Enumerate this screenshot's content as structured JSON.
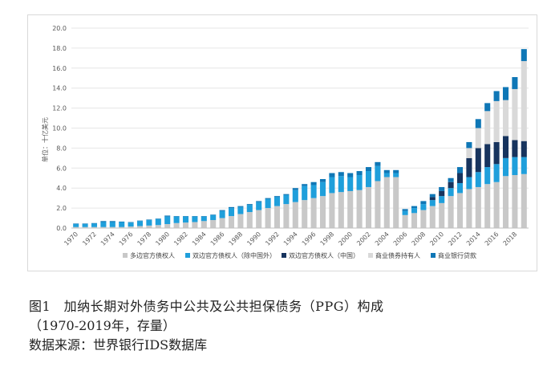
{
  "figure": {
    "caption_title": "图1　加纳长期对外债务中公共及公共担保债务（PPG）构成",
    "caption_subtitle": "（1970-2019年，存量）",
    "source": "数据来源：世界银行IDS数据库"
  },
  "chart_data": {
    "type": "bar",
    "stacked": true,
    "ylabel": "单位：十亿美元",
    "ylim": [
      0,
      20
    ],
    "yticks": [
      "0.0",
      "2.0",
      "4.0",
      "6.0",
      "8.0",
      "10.0",
      "12.0",
      "14.0",
      "16.0",
      "18.0",
      "20.0"
    ],
    "categories": [
      "1970",
      "1971",
      "1972",
      "1973",
      "1974",
      "1975",
      "1976",
      "1977",
      "1978",
      "1979",
      "1980",
      "1981",
      "1982",
      "1983",
      "1984",
      "1985",
      "1986",
      "1987",
      "1988",
      "1989",
      "1990",
      "1991",
      "1992",
      "1993",
      "1994",
      "1995",
      "1996",
      "1997",
      "1998",
      "1999",
      "2000",
      "2001",
      "2002",
      "2003",
      "2004",
      "2005",
      "2006",
      "2007",
      "2008",
      "2009",
      "2010",
      "2011",
      "2012",
      "2013",
      "2014",
      "2015",
      "2016",
      "2017",
      "2018",
      "2019"
    ],
    "xtick_labels": [
      "1970",
      "1972",
      "1974",
      "1976",
      "1978",
      "1980",
      "1982",
      "1984",
      "1986",
      "1988",
      "1990",
      "1992",
      "1994",
      "1996",
      "1998",
      "2000",
      "2002",
      "2004",
      "2006",
      "2008",
      "2010",
      "2012",
      "2014",
      "2016",
      "2018"
    ],
    "legend_position": "bottom",
    "series": [
      {
        "name": "多边官方债权人",
        "color": "#c8c8c8",
        "values": [
          0.1,
          0.1,
          0.1,
          0.1,
          0.1,
          0.1,
          0.15,
          0.2,
          0.25,
          0.3,
          0.4,
          0.5,
          0.55,
          0.6,
          0.7,
          0.8,
          1.0,
          1.2,
          1.4,
          1.6,
          1.8,
          2.0,
          2.2,
          2.4,
          2.6,
          2.8,
          3.0,
          3.2,
          3.5,
          3.6,
          3.7,
          3.8,
          4.1,
          4.7,
          5.1,
          5.1,
          1.3,
          1.5,
          1.8,
          2.2,
          2.5,
          3.2,
          3.5,
          3.9,
          4.1,
          4.4,
          4.6,
          5.2,
          5.3,
          5.4
        ]
      },
      {
        "name": "双边官方债权人（除中国外）",
        "color": "#1f9fdb",
        "values": [
          0.3,
          0.3,
          0.35,
          0.5,
          0.5,
          0.5,
          0.4,
          0.5,
          0.55,
          0.6,
          0.75,
          0.65,
          0.6,
          0.55,
          0.45,
          0.5,
          0.7,
          0.8,
          0.7,
          0.7,
          0.8,
          0.9,
          0.9,
          0.9,
          1.2,
          1.4,
          1.3,
          1.4,
          1.6,
          1.6,
          1.4,
          1.5,
          1.6,
          1.5,
          0.4,
          0.4,
          0.4,
          0.5,
          0.6,
          0.6,
          0.7,
          0.8,
          1.0,
          1.2,
          1.5,
          1.7,
          1.8,
          1.8,
          1.8,
          1.7
        ]
      },
      {
        "name": "双边官方债权人（中国）",
        "color": "#17345e",
        "values": [
          0,
          0,
          0,
          0,
          0,
          0,
          0,
          0,
          0,
          0,
          0,
          0,
          0,
          0,
          0,
          0,
          0,
          0,
          0,
          0,
          0,
          0,
          0,
          0,
          0,
          0,
          0,
          0,
          0,
          0,
          0,
          0,
          0,
          0,
          0,
          0,
          0,
          0,
          0,
          0.3,
          0.5,
          0.6,
          1.0,
          1.9,
          2.4,
          2.3,
          2.2,
          2.2,
          1.7,
          1.6
        ]
      },
      {
        "name": "商业债券持有人",
        "color": "#d9d9d9",
        "values": [
          0,
          0,
          0,
          0,
          0,
          0,
          0,
          0,
          0,
          0,
          0,
          0,
          0,
          0,
          0,
          0,
          0,
          0,
          0,
          0,
          0,
          0,
          0,
          0,
          0,
          0,
          0,
          0,
          0,
          0,
          0,
          0,
          0,
          0,
          0,
          0,
          0,
          0,
          0,
          0,
          0,
          0,
          0,
          1.0,
          2.0,
          3.3,
          4.1,
          3.6,
          5.1,
          8.0
        ]
      },
      {
        "name": "商业银行贷款",
        "color": "#0f77b6",
        "values": [
          0.05,
          0.05,
          0.05,
          0.1,
          0.1,
          0.05,
          0.05,
          0.05,
          0.05,
          0.05,
          0.1,
          0.05,
          0.05,
          0.05,
          0.05,
          0.05,
          0.1,
          0.1,
          0.1,
          0.1,
          0.1,
          0.1,
          0.1,
          0.1,
          0.2,
          0.2,
          0.3,
          0.3,
          0.4,
          0.4,
          0.4,
          0.4,
          0.4,
          0.4,
          0.3,
          0.3,
          0.2,
          0.2,
          0.3,
          0.3,
          0.4,
          0.4,
          0.6,
          0.6,
          0.9,
          0.8,
          1.0,
          1.3,
          1.2,
          1.2
        ]
      }
    ]
  }
}
